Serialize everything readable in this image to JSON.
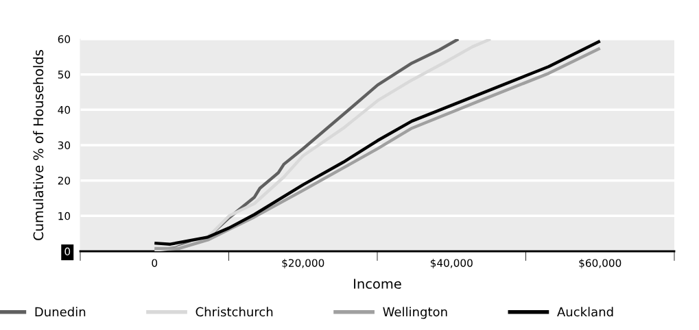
{
  "chart_data": {
    "type": "line",
    "xlabel": "Income",
    "ylabel": "Cumulative % of Households",
    "xlim": [
      -10000,
      70000
    ],
    "xticks": [
      {
        "value": -10000,
        "label": null
      },
      {
        "value": 0,
        "label": "0"
      },
      {
        "value": 10000,
        "label": null
      },
      {
        "value": 20000,
        "label": "$20,000"
      },
      {
        "value": 30000,
        "label": null
      },
      {
        "value": 40000,
        "label": "$40,000"
      },
      {
        "value": 50000,
        "label": null
      },
      {
        "value": 60000,
        "label": "$60,000"
      },
      {
        "value": 70000,
        "label": null
      }
    ],
    "ylim": [
      0,
      60
    ],
    "yticks": [
      0,
      10,
      20,
      30,
      40,
      50,
      60
    ],
    "grid": "y",
    "legend": "bottom",
    "marker": "none",
    "line_style": "solid",
    "series": [
      {
        "name": "Dunedin",
        "color": "#606060",
        "x": [
          0,
          2860,
          4700,
          7190,
          10050,
          13460,
          14190,
          16680,
          17420,
          20000,
          25440,
          30050,
          34660,
          38340,
          40920
        ],
        "values": [
          0.3,
          1,
          2.5,
          4,
          9.5,
          15.3,
          17.8,
          22.2,
          24.6,
          29,
          38.7,
          47,
          53.2,
          56.9,
          60
        ]
      },
      {
        "name": "Christchurch",
        "color": "#d9d9d9",
        "x": [
          0,
          2860,
          4700,
          7190,
          10050,
          13460,
          17420,
          20000,
          25440,
          30050,
          34660,
          39270,
          42810,
          45250
        ],
        "values": [
          0.3,
          0.8,
          2,
          4,
          10,
          13.5,
          21,
          27,
          34.8,
          42.6,
          48.4,
          53.6,
          57.8,
          60
        ]
      },
      {
        "name": "Wellington",
        "color": "#a0a0a0",
        "x": [
          0,
          3300,
          7190,
          10050,
          13460,
          20000,
          25440,
          30050,
          34660,
          43870,
          53090,
          60000
        ],
        "values": [
          0.8,
          0.8,
          3.2,
          6.2,
          9.7,
          17.2,
          23.6,
          29,
          34.8,
          42.6,
          50.3,
          57.4
        ]
      },
      {
        "name": "Auckland",
        "color": "#000000",
        "x": [
          0,
          2120,
          7190,
          10050,
          13460,
          20000,
          25440,
          30050,
          34660,
          43870,
          53090,
          60000
        ],
        "values": [
          2.3,
          2,
          4,
          6.6,
          10.4,
          18.8,
          25.2,
          31.3,
          36.8,
          44.5,
          52.2,
          59.4
        ]
      }
    ]
  }
}
